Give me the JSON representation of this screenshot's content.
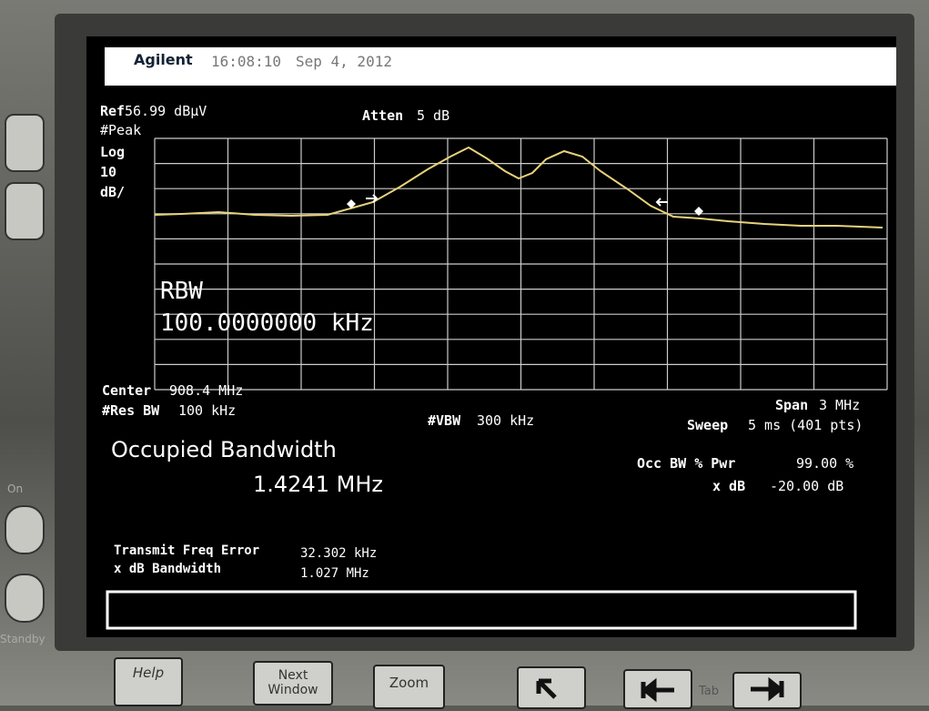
{
  "header": {
    "brand": "Agilent",
    "time": "16:08:10",
    "date": "Sep 4, 2012"
  },
  "settings": {
    "ref_label": "Ref",
    "ref_value": "56.99 dBµV",
    "atten_label": "Atten",
    "atten_value": "5 dB",
    "detector": "#Peak",
    "scale_type": "Log",
    "scale_value": "10",
    "scale_unit": "dB/"
  },
  "overlay": {
    "rbw_label": "RBW",
    "rbw_value": "100.0000000 kHz"
  },
  "footer": {
    "center_label": "Center",
    "center_value": "908.4 MHz",
    "res_bw_label": "#Res BW",
    "res_bw_value": "100 kHz",
    "vbw_label": "#VBW",
    "vbw_value": "300 kHz",
    "span_label": "Span",
    "span_value": "3 MHz",
    "sweep_label": "Sweep",
    "sweep_value": "5 ms (401 pts)"
  },
  "measurement": {
    "title": "Occupied Bandwidth",
    "value": "1.4241 MHz",
    "occ_label": "Occ BW % Pwr",
    "occ_value": "99.00 %",
    "xdb_label": "x dB",
    "xdb_value": "-20.00 dB",
    "results": [
      {
        "label": "Transmit Freq Error",
        "value": "32.302 kHz"
      },
      {
        "label": "x dB Bandwidth",
        "value": "1.027 MHz"
      }
    ]
  },
  "softkeys": [
    "Help",
    "Next Window",
    "Zoom",
    "Tab"
  ],
  "panel": {
    "on": "On",
    "standby": "Standby"
  }
}
